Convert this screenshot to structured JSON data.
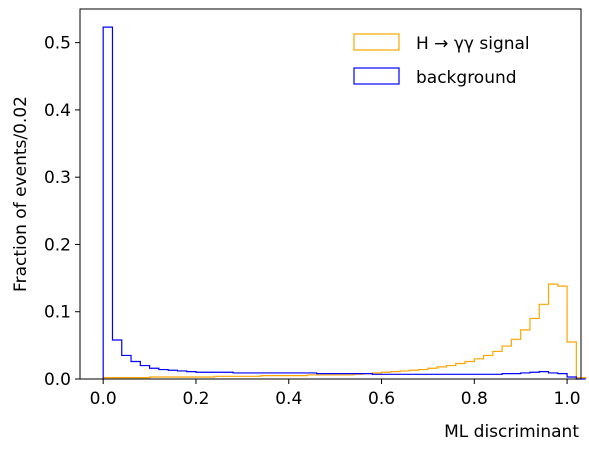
{
  "chart_data": {
    "type": "histogram",
    "title": "",
    "xlabel": "ML discriminant",
    "ylabel": "Fraction of events/0.02",
    "xlim": [
      -0.05,
      1.03
    ],
    "ylim": [
      0,
      0.55
    ],
    "bin_width": 0.02,
    "bin_edges_start": 0.0,
    "grid": false,
    "legend_position": "top-right",
    "x_ticks": [
      {
        "value": 0.0,
        "label": "0.0"
      },
      {
        "value": 0.2,
        "label": "0.2"
      },
      {
        "value": 0.4,
        "label": "0.4"
      },
      {
        "value": 0.6,
        "label": "0.6"
      },
      {
        "value": 0.8,
        "label": "0.8"
      },
      {
        "value": 1.0,
        "label": "1.0"
      }
    ],
    "y_ticks": [
      {
        "value": 0.0,
        "label": "0.0"
      },
      {
        "value": 0.1,
        "label": "0.1"
      },
      {
        "value": 0.2,
        "label": "0.2"
      },
      {
        "value": 0.3,
        "label": "0.3"
      },
      {
        "value": 0.4,
        "label": "0.4"
      },
      {
        "value": 0.5,
        "label": "0.5"
      }
    ],
    "series": [
      {
        "name": "H → γγ signal",
        "color": "#ffa500",
        "values": [
          0.002,
          0.002,
          0.002,
          0.002,
          0.002,
          0.003,
          0.003,
          0.003,
          0.003,
          0.003,
          0.003,
          0.003,
          0.004,
          0.004,
          0.004,
          0.004,
          0.004,
          0.005,
          0.005,
          0.005,
          0.005,
          0.005,
          0.006,
          0.006,
          0.006,
          0.006,
          0.006,
          0.007,
          0.008,
          0.009,
          0.01,
          0.011,
          0.012,
          0.013,
          0.014,
          0.016,
          0.018,
          0.02,
          0.023,
          0.026,
          0.03,
          0.035,
          0.041,
          0.049,
          0.059,
          0.073,
          0.09,
          0.111,
          0.141,
          0.138,
          0.055,
          0.002
        ]
      },
      {
        "name": "background",
        "color": "#0000ff",
        "values": [
          0.523,
          0.058,
          0.035,
          0.026,
          0.02,
          0.016,
          0.014,
          0.013,
          0.012,
          0.011,
          0.01,
          0.01,
          0.01,
          0.01,
          0.009,
          0.009,
          0.009,
          0.009,
          0.009,
          0.009,
          0.009,
          0.009,
          0.009,
          0.008,
          0.008,
          0.008,
          0.008,
          0.008,
          0.008,
          0.007,
          0.007,
          0.007,
          0.007,
          0.007,
          0.007,
          0.007,
          0.007,
          0.007,
          0.007,
          0.007,
          0.007,
          0.007,
          0.007,
          0.008,
          0.008,
          0.009,
          0.01,
          0.011,
          0.009,
          0.008,
          0.003,
          0.0
        ]
      }
    ]
  }
}
